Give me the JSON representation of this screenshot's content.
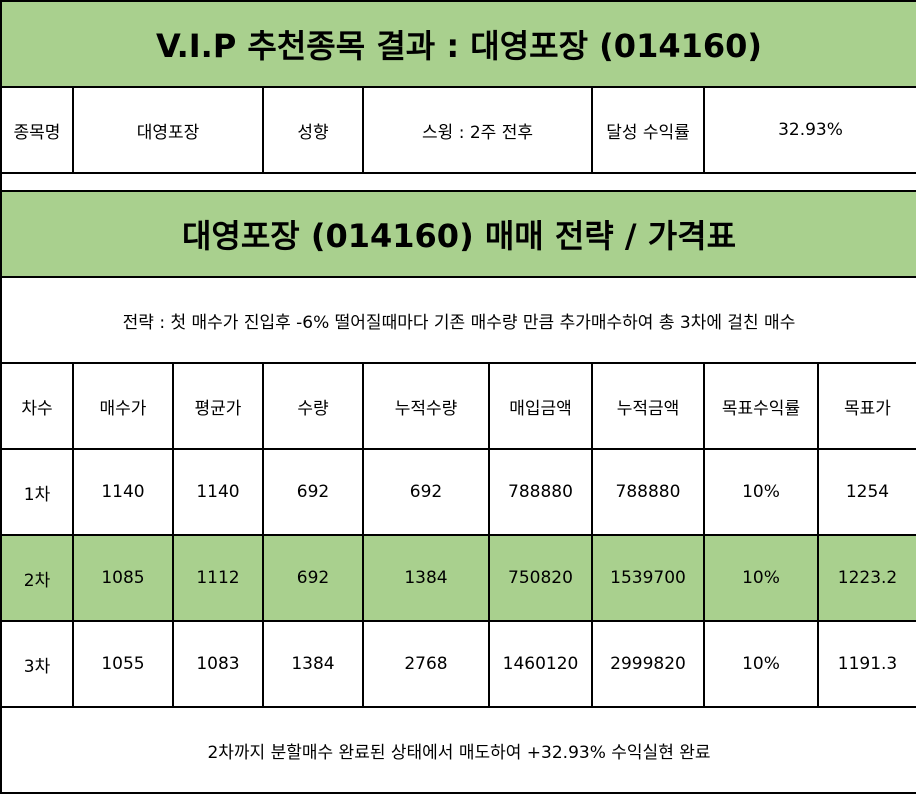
{
  "title": "V.I.P 추천종목 결과 : 대영포장 (014160)",
  "info": {
    "name_label": "종목명",
    "name_value": "대영포장",
    "style_label": "성향",
    "style_value": "스윙 : 2주 전후",
    "return_label": "달성 수익률",
    "return_value": "32.93%"
  },
  "strategy_title": "대영포장 (014160) 매매 전략 / 가격표",
  "strategy_text": "전략 : 첫 매수가 진입후 -6% 떨어질때마다 기존 매수량 만큼 추가매수하여 총 3차에 걸친 매수",
  "headers": [
    "차수",
    "매수가",
    "평균가",
    "수량",
    "누적수량",
    "매입금액",
    "누적금액",
    "목표수익률",
    "목표가"
  ],
  "rows": [
    [
      "1차",
      "1140",
      "1140",
      "692",
      "692",
      "788880",
      "788880",
      "10%",
      "1254"
    ],
    [
      "2차",
      "1085",
      "1112",
      "692",
      "1384",
      "750820",
      "1539700",
      "10%",
      "1223.2"
    ],
    [
      "3차",
      "1055",
      "1083",
      "1384",
      "2768",
      "1460120",
      "2999820",
      "10%",
      "1191.3"
    ]
  ],
  "footer": "2차까지 분할매수 완료된 상태에서 매도하여 +32.93% 수익실현 완료",
  "colors": {
    "accent_green": "#a9d08e"
  }
}
